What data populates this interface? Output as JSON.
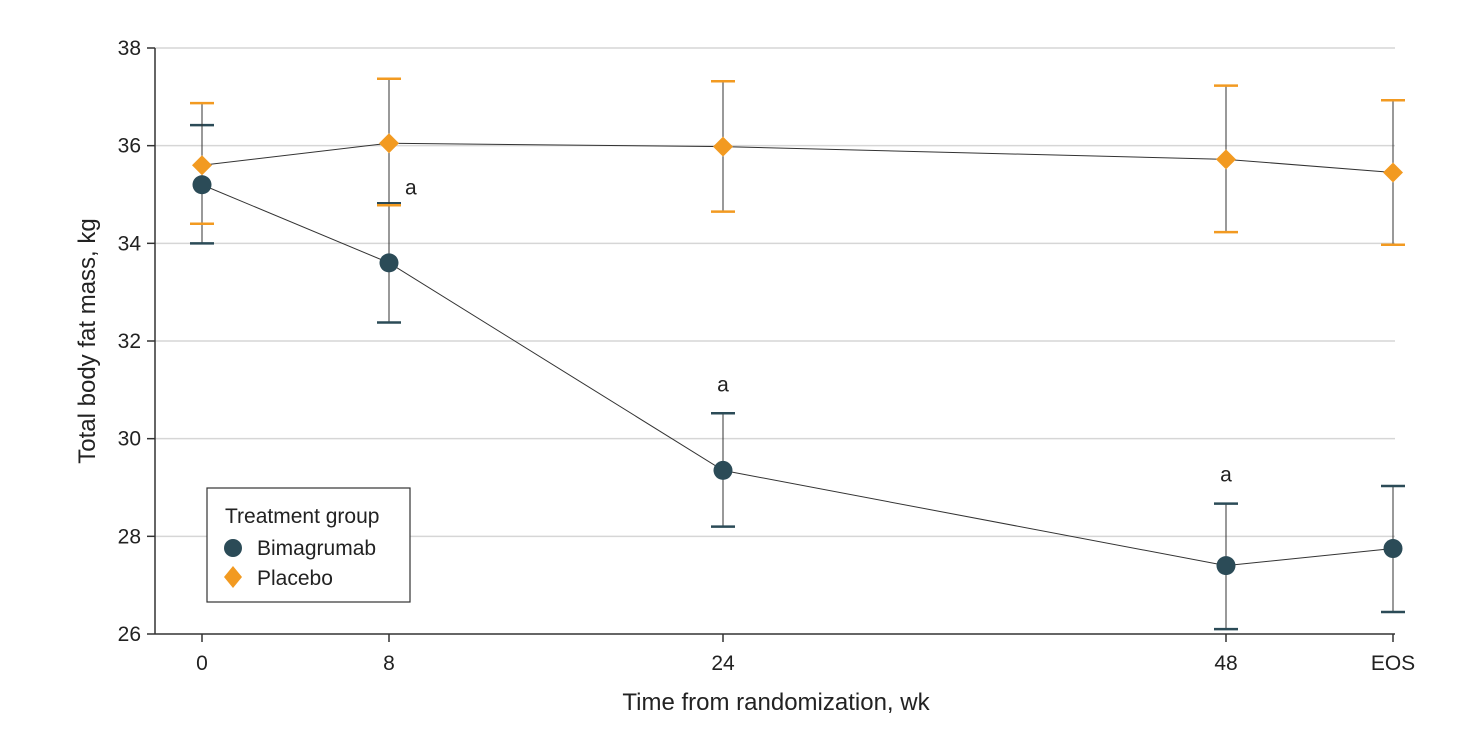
{
  "chart_data": {
    "type": "line",
    "title": "",
    "xlabel": "Time from randomization, wk",
    "ylabel": "Total body fat mass, kg",
    "ylim": [
      26,
      38
    ],
    "yticks": [
      26,
      28,
      30,
      32,
      34,
      36,
      38
    ],
    "grid": true,
    "categories": [
      "0",
      "8",
      "24",
      "48",
      "EOS"
    ],
    "x": [
      0,
      8,
      24,
      48,
      56
    ],
    "series": [
      {
        "name": "Bimagrumab",
        "marker": "circle",
        "color": "#2b4b57",
        "values": [
          35.2,
          33.6,
          29.35,
          27.4,
          27.75
        ],
        "lower": [
          34.0,
          32.38,
          28.2,
          26.1,
          26.45
        ],
        "upper": [
          36.42,
          34.82,
          30.52,
          28.67,
          29.03
        ]
      },
      {
        "name": "Placebo",
        "marker": "diamond",
        "color": "#f29a21",
        "values": [
          35.6,
          36.05,
          35.98,
          35.72,
          35.45
        ],
        "lower": [
          34.4,
          34.78,
          34.65,
          34.23,
          33.97
        ],
        "upper": [
          36.87,
          37.37,
          37.32,
          37.23,
          36.93
        ]
      }
    ],
    "annotations": [
      {
        "x": 8,
        "y": 34.82,
        "text": "a"
      },
      {
        "x": 24,
        "y": 30.52,
        "text": "a"
      },
      {
        "x": 48,
        "y": 28.67,
        "text": "a"
      }
    ],
    "legend": {
      "title": "Treatment group",
      "position": "bottom-left"
    }
  }
}
